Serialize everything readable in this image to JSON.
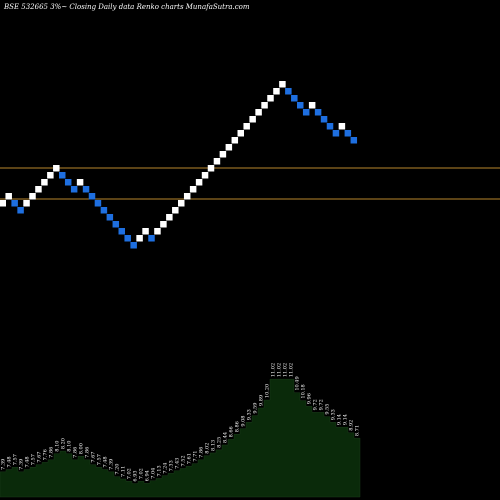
{
  "title": "BSE 532665 3%~  Closing Daily data  Renko  charts MunafaSutra.com",
  "colors": {
    "background": "#000000",
    "up_brick": "#ffffff",
    "down_brick": "#1e6fe0",
    "reference_line": "#b8862b",
    "volume_fill": "#0a2a0a",
    "volume_stroke": "#1b3b1b",
    "volume_text": "#ffffff"
  },
  "chart_data": [
    {
      "type": "renko",
      "brick_directions": [
        "up",
        "up",
        "down",
        "down",
        "up",
        "up",
        "up",
        "up",
        "up",
        "up",
        "down",
        "down",
        "down",
        "up",
        "down",
        "down",
        "down",
        "down",
        "down",
        "down",
        "down",
        "down",
        "down",
        "up",
        "up",
        "down",
        "up",
        "up",
        "up",
        "up",
        "up",
        "up",
        "up",
        "up",
        "up",
        "up",
        "up",
        "up",
        "up",
        "up",
        "up",
        "up",
        "up",
        "up",
        "up",
        "up",
        "up",
        "up",
        "down",
        "down",
        "down",
        "down",
        "up",
        "down",
        "down",
        "down",
        "down",
        "up",
        "down",
        "down"
      ],
      "reference_lines": [
        "upper-line",
        "lower-line"
      ]
    },
    {
      "type": "area",
      "series": [
        {
          "values": [
            7.39,
            7.48,
            7.57,
            7.39,
            7.48,
            7.57,
            7.67,
            7.76,
            7.86,
            8.1,
            8.2,
            8.1,
            7.86,
            8.0,
            7.86,
            7.67,
            7.57,
            7.48,
            7.39,
            7.2,
            7.11,
            7.02,
            6.93,
            7.02,
            6.94,
            7.04,
            7.13,
            7.24,
            7.33,
            7.43,
            7.52,
            7.61,
            7.71,
            7.86,
            8.02,
            8.13,
            8.25,
            8.44,
            8.66,
            8.86,
            9.08,
            9.33,
            9.59,
            9.89,
            10.2,
            11.02,
            11.02,
            11.02,
            11.02,
            10.49,
            10.18,
            9.96,
            9.72,
            9.72,
            9.55,
            9.33,
            9.14,
            9.14,
            8.92,
            8.71
          ]
        }
      ],
      "data_labels": [
        "7.39",
        "7.48",
        "7.57",
        "7.39",
        "7.48",
        "7.57",
        "7.67",
        "7.76",
        "7.86",
        "8.10",
        "8.20",
        "8.10",
        "7.86",
        "8.00",
        "7.86",
        "7.67",
        "7.57",
        "7.48",
        "7.39",
        "7.20",
        "7.11",
        "7.02",
        "6.93",
        "7.02",
        "6.94",
        "7.04",
        "7.13",
        "7.24",
        "7.33",
        "7.43",
        "7.52",
        "7.61",
        "7.71",
        "7.86",
        "8.02",
        "8.13",
        "8.25",
        "8.44",
        "8.66",
        "8.86",
        "9.08",
        "9.33",
        "9.59",
        "9.89",
        "10.20",
        "11.02",
        "11.02",
        "11.02",
        "11.02",
        "10.49",
        "10.18",
        "9.96",
        "9.72",
        "9.72",
        "9.55",
        "9.33",
        "9.14",
        "9.14",
        "8.92",
        "8.71"
      ]
    }
  ]
}
